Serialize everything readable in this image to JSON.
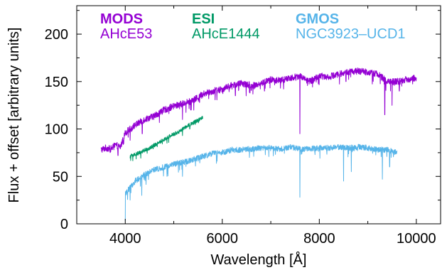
{
  "chart_data": {
    "type": "line",
    "title": "",
    "xlabel": "Wavelength [Å]",
    "ylabel": "Flux + offset [arbitrary units]",
    "xlim": [
      3000,
      10500
    ],
    "ylim": [
      0,
      230
    ],
    "xticks": [
      4000,
      6000,
      8000,
      10000
    ],
    "yticks": [
      0,
      50,
      100,
      150,
      200
    ],
    "grid": false,
    "legend_position": "top",
    "series": [
      {
        "instrument": "MODS",
        "name": "AHcE53",
        "color": "#9400D3",
        "noise": 3.5,
        "x": [
          3500,
          3600,
          3700,
          3800,
          3900,
          4000,
          4200,
          4400,
          4600,
          4800,
          5000,
          5200,
          5400,
          5600,
          5800,
          6000,
          6200,
          6400,
          6600,
          6800,
          7000,
          7200,
          7400,
          7600,
          7800,
          8000,
          8200,
          8400,
          8600,
          8800,
          9000,
          9200,
          9400,
          9600,
          9800,
          10000
        ],
        "y": [
          78,
          80,
          79,
          83,
          81,
          96,
          104,
          110,
          114,
          120,
          124,
          127,
          130,
          137,
          140,
          142,
          146,
          148,
          146,
          148,
          152,
          151,
          154,
          156,
          150,
          156,
          155,
          158,
          160,
          161,
          160,
          158,
          150,
          150,
          152,
          154
        ],
        "dips": [
          [
            3850,
            72
          ],
          [
            4100,
            88
          ],
          [
            4350,
            95
          ],
          [
            5180,
            110
          ],
          [
            5350,
            120
          ],
          [
            5530,
            128
          ],
          [
            6270,
            135
          ],
          [
            6570,
            138
          ],
          [
            6870,
            140
          ],
          [
            7200,
            143
          ],
          [
            7600,
            95
          ],
          [
            8550,
            150
          ],
          [
            9350,
            115
          ],
          [
            9500,
            125
          ],
          [
            9650,
            140
          ]
        ]
      },
      {
        "instrument": "ESI",
        "name": "AHcE1444",
        "color": "#009966",
        "noise": 2.0,
        "x": [
          4100,
          4300,
          4500,
          4700,
          4900,
          5100,
          5300,
          5500,
          5600
        ],
        "y": [
          71,
          75,
          80,
          86,
          92,
          97,
          104,
          109,
          112
        ],
        "dips": [
          [
            4860,
            85
          ],
          [
            5180,
            93
          ],
          [
            5330,
            100
          ]
        ]
      },
      {
        "instrument": "GMOS",
        "name": "NGC3923–UCD1",
        "color": "#56B4E9",
        "noise": 3.0,
        "x": [
          4000,
          4100,
          4200,
          4400,
          4600,
          4800,
          5000,
          5200,
          5400,
          5600,
          5800,
          6000,
          6200,
          6400,
          6600,
          6800,
          7000,
          7200,
          7400,
          7600,
          7800,
          8000,
          8200,
          8400,
          8600,
          8800,
          9000,
          9200,
          9400,
          9600
        ],
        "y": [
          32,
          38,
          45,
          52,
          57,
          60,
          63,
          65,
          68,
          71,
          74,
          75,
          78,
          78,
          79,
          80,
          80,
          79,
          81,
          79,
          79,
          80,
          80,
          81,
          80,
          81,
          80,
          78,
          78,
          75
        ],
        "dips": [
          [
            4000,
            3
          ],
          [
            4100,
            25
          ],
          [
            4340,
            30
          ],
          [
            4860,
            50
          ],
          [
            5180,
            50
          ],
          [
            5890,
            66
          ],
          [
            6560,
            70
          ],
          [
            7600,
            28
          ],
          [
            8500,
            45
          ],
          [
            8660,
            55
          ],
          [
            9300,
            47
          ],
          [
            9450,
            60
          ]
        ]
      }
    ]
  }
}
